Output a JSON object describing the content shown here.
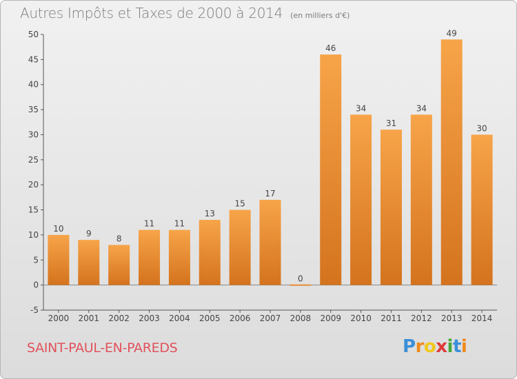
{
  "title": "Autres Impôts et Taxes de 2000 à 2014",
  "subtitle": "(en milliers d'€)",
  "commune": "SAINT-PAUL-EN-PAREDS",
  "logo": {
    "letters": [
      "P",
      "r",
      "o",
      "x",
      "i",
      "t",
      "i"
    ],
    "colors": [
      "#3a8fd8",
      "#f08a1c",
      "#f2c81b",
      "#de3a3a",
      "#46a83a",
      "#3a8fd8",
      "#f08a1c"
    ]
  },
  "colors": {
    "bar_light": "#f7a449",
    "bar_dark": "#d4731e",
    "title": "#7a7a7a",
    "commune": "#e0525c"
  },
  "chart_data": {
    "type": "bar",
    "categories": [
      "2000",
      "2001",
      "2002",
      "2003",
      "2004",
      "2005",
      "2006",
      "2007",
      "2008",
      "2009",
      "2010",
      "2011",
      "2012",
      "2013",
      "2014"
    ],
    "values": [
      10,
      9,
      8,
      11,
      11,
      13,
      15,
      17,
      0,
      46,
      34,
      31,
      34,
      49,
      30
    ],
    "ylim": [
      -5,
      50
    ],
    "yticks": [
      -5,
      0,
      5,
      10,
      15,
      20,
      25,
      30,
      35,
      40,
      45,
      50
    ],
    "grid": false
  }
}
